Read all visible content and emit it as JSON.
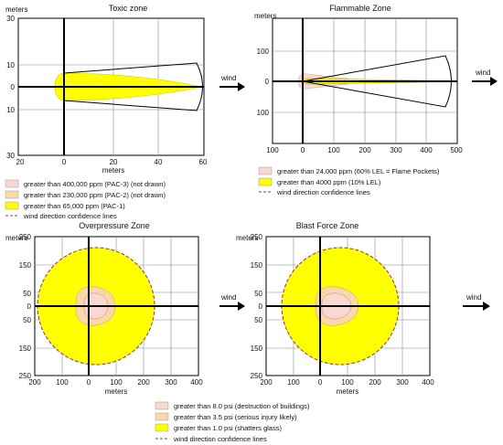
{
  "panels": {
    "toxic": {
      "title": "Toxic zone",
      "y_unit": "meters",
      "x_unit": "meters",
      "y_ticks": [
        "30",
        "10",
        "0",
        "10",
        "30"
      ],
      "x_ticks": [
        "20",
        "0",
        "20",
        "40",
        "60"
      ],
      "legend": [
        "greater than 400,000 ppm (PAC-3) (not drawn)",
        "greater than 230,000 ppm (PAC-2) (not drawn)",
        "greater than 65,000 ppm (PAC-1)",
        "wind direction confidence lines"
      ]
    },
    "flammable": {
      "title": "Flammable Zone",
      "y_unit": "meters",
      "x_unit": "",
      "y_ticks": [
        "100",
        "0",
        "100"
      ],
      "x_ticks": [
        "100",
        "0",
        "100",
        "200",
        "300",
        "400",
        "500"
      ],
      "legend": [
        "greater than 24,000 ppm (60% LEL = Flame Pockets)",
        "greater than 4000 ppm (10% LEL)",
        "wind direction confidence lines"
      ]
    },
    "overpressure": {
      "title": "Overpressure Zone",
      "y_unit": "meters",
      "x_unit": "meters",
      "y_ticks": [
        "250",
        "150",
        "50",
        "0",
        "50",
        "150",
        "250"
      ],
      "x_ticks": [
        "200",
        "100",
        "0",
        "100",
        "200",
        "300",
        "400"
      ]
    },
    "blast": {
      "title": "Blast Force Zone",
      "y_unit": "meters",
      "x_unit": "meters",
      "y_ticks": [
        "250",
        "150",
        "50",
        "0",
        "50",
        "150",
        "250"
      ],
      "x_ticks": [
        "200",
        "100",
        "0",
        "100",
        "200",
        "300",
        "400"
      ]
    }
  },
  "wind_label": "wind",
  "pressure_legend": [
    "greater than 8.0 psi (destruction of buildings)",
    "greater than 3.5 psi (serious injury likely)",
    "greater than 1.0 psi (shatters glass)",
    "wind direction confidence lines"
  ],
  "colors": {
    "red_zone": "#f8d8d0",
    "orange_zone": "#fbd8a8",
    "yellow_zone": "#ffff00",
    "confidence_line": "#8b3a3a",
    "axis": "#000000",
    "grid": "#888888"
  }
}
